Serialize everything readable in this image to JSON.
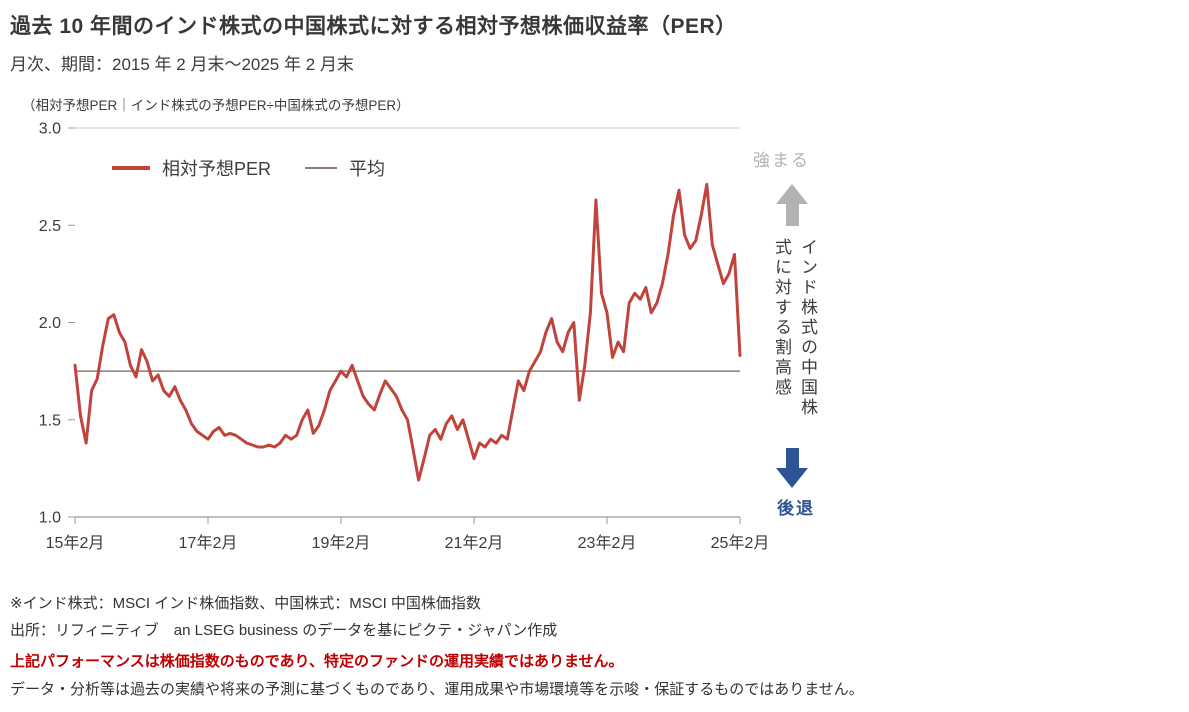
{
  "page": {
    "title": "過去 10 年間のインド株式の中国株式に対する相対予想株価収益率（PER）",
    "subtitle": "月次、期間：2015 年 2 月末～2025 年 2 月末"
  },
  "chart": {
    "axis_note": "（相対予想PER｜インド株式の予想PER÷中国株式の予想PER）",
    "legend": {
      "series_label": "相対予想PER",
      "average_label": "平均"
    },
    "right_annotations": {
      "top_label": "強まる",
      "vertical_label": "インド株式の中国株式に対する割高感",
      "bottom_label": "後退"
    },
    "colors": {
      "series": "#c0443c",
      "average": "#8c7b72",
      "muted": "#b2b2b2",
      "accent_blue": "#2e5496",
      "warn_red": "#c00000"
    }
  },
  "chart_data": {
    "type": "line",
    "title": "過去 10 年間のインド株式の中国株式に対する相対予想株価収益率（PER）",
    "xlabel": "",
    "ylabel": "相対予想PER（インド株式の予想PER÷中国株式の予想PER）",
    "frequency": "monthly",
    "x_start": "2015-02",
    "x_end": "2025-02",
    "x_tick_labels": [
      "15年2月",
      "17年2月",
      "19年2月",
      "21年2月",
      "23年2月",
      "25年2月"
    ],
    "y_ticks": [
      1.0,
      1.5,
      2.0,
      2.5,
      3.0
    ],
    "ylim": [
      1.0,
      3.0
    ],
    "average": 1.75,
    "legend": [
      "相対予想PER",
      "平均"
    ],
    "grid": false,
    "values": [
      1.78,
      1.52,
      1.38,
      1.65,
      1.71,
      1.88,
      2.02,
      2.04,
      1.95,
      1.9,
      1.78,
      1.72,
      1.86,
      1.8,
      1.7,
      1.73,
      1.65,
      1.62,
      1.67,
      1.6,
      1.55,
      1.48,
      1.44,
      1.42,
      1.4,
      1.44,
      1.46,
      1.42,
      1.43,
      1.42,
      1.4,
      1.38,
      1.37,
      1.36,
      1.36,
      1.37,
      1.36,
      1.38,
      1.42,
      1.4,
      1.42,
      1.5,
      1.55,
      1.43,
      1.47,
      1.55,
      1.65,
      1.7,
      1.75,
      1.72,
      1.78,
      1.7,
      1.62,
      1.58,
      1.55,
      1.63,
      1.7,
      1.66,
      1.62,
      1.55,
      1.5,
      1.35,
      1.19,
      1.3,
      1.42,
      1.45,
      1.4,
      1.48,
      1.52,
      1.45,
      1.5,
      1.4,
      1.3,
      1.38,
      1.36,
      1.4,
      1.38,
      1.42,
      1.4,
      1.55,
      1.7,
      1.65,
      1.75,
      1.8,
      1.85,
      1.95,
      2.02,
      1.9,
      1.85,
      1.95,
      2.0,
      1.6,
      1.78,
      2.05,
      2.63,
      2.15,
      2.05,
      1.82,
      1.9,
      1.85,
      2.1,
      2.15,
      2.12,
      2.18,
      2.05,
      2.1,
      2.2,
      2.35,
      2.55,
      2.68,
      2.45,
      2.38,
      2.42,
      2.55,
      2.71,
      2.4,
      2.3,
      2.2,
      2.25,
      2.35,
      1.83
    ]
  },
  "footnotes": {
    "note1": "※インド株式：MSCI インド株価指数、中国株式：MSCI 中国株価指数",
    "note2": "出所：リフィニティブ　an LSEG business のデータを基にピクテ・ジャパン作成",
    "disclaimer1": "上記パフォーマンスは株価指数のものであり、特定のファンドの運用実績ではありません。",
    "disclaimer2": "データ・分析等は過去の実績や将来の予測に基づくものであり、運用成果や市場環境等を示唆・保証するものではありません。"
  }
}
